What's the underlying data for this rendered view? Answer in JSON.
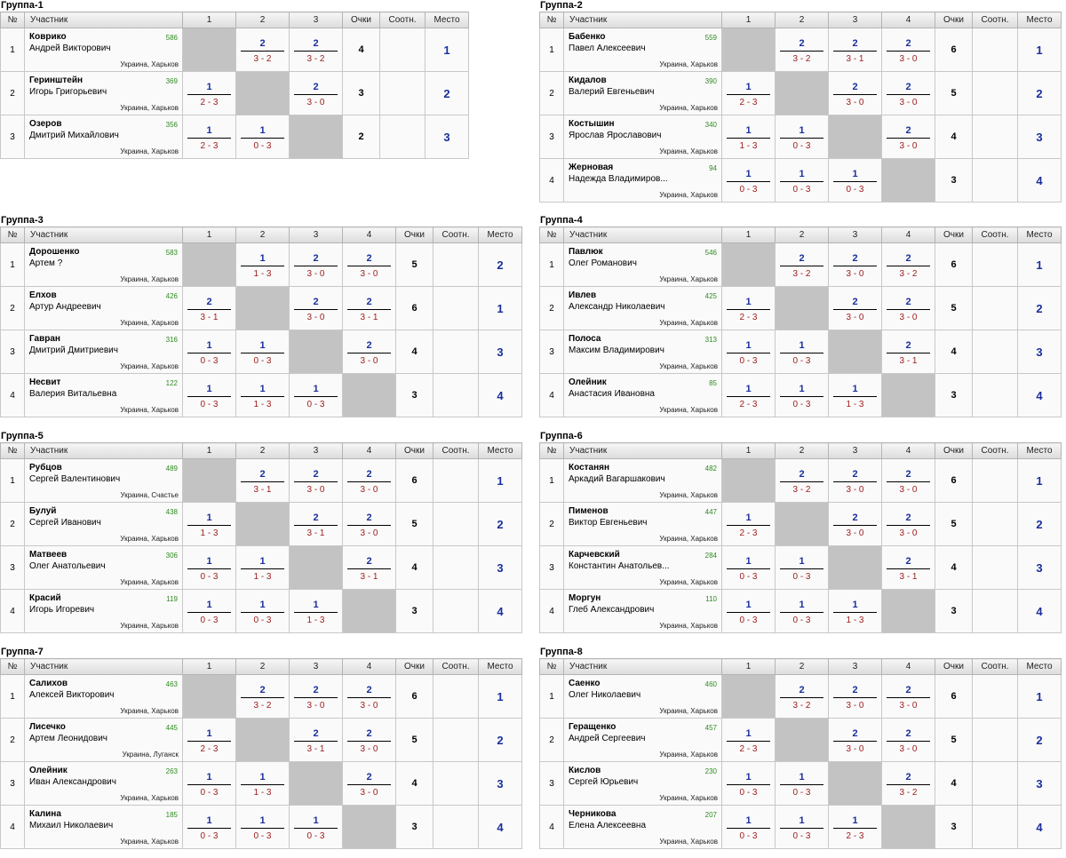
{
  "headers": {
    "no": "№",
    "participant": "Участник",
    "points": "Очки",
    "ratio": "Соотн.",
    "place": "Место"
  },
  "groups": [
    {
      "title": "Группа-1",
      "players": [
        {
          "n": "1",
          "last": "Коврико",
          "first": "Андрей Викторович",
          "rating": "586",
          "city": "Украина, Харьков",
          "results": [
            "",
            "2|3 - 2",
            "2|3 - 2"
          ],
          "points": "4",
          "ratio": "",
          "place": "1"
        },
        {
          "n": "2",
          "last": "Геринштейн",
          "first": "Игорь Григорьевич",
          "rating": "369",
          "city": "Украина, Харьков",
          "results": [
            "1|2 - 3",
            "",
            "2|3 - 0"
          ],
          "points": "3",
          "ratio": "",
          "place": "2"
        },
        {
          "n": "3",
          "last": "Озеров",
          "first": "Дмитрий Михайлович",
          "rating": "356",
          "city": "Украина, Харьков",
          "results": [
            "1|2 - 3",
            "1|0 - 3",
            ""
          ],
          "points": "2",
          "ratio": "",
          "place": "3"
        }
      ]
    },
    {
      "title": "Группа-2",
      "players": [
        {
          "n": "1",
          "last": "Бабенко",
          "first": "Павел Алексеевич",
          "rating": "559",
          "city": "Украина, Харьков",
          "results": [
            "",
            "2|3 - 2",
            "2|3 - 1",
            "2|3 - 0"
          ],
          "points": "6",
          "ratio": "",
          "place": "1"
        },
        {
          "n": "2",
          "last": "Кидалов",
          "first": "Валерий Евгеньевич",
          "rating": "390",
          "city": "Украина, Харьков",
          "results": [
            "1|2 - 3",
            "",
            "2|3 - 0",
            "2|3 - 0"
          ],
          "points": "5",
          "ratio": "",
          "place": "2"
        },
        {
          "n": "3",
          "last": "Костышин",
          "first": "Ярослав Ярославович",
          "rating": "340",
          "city": "Украина, Харьков",
          "results": [
            "1|1 - 3",
            "1|0 - 3",
            "",
            "2|3 - 0"
          ],
          "points": "4",
          "ratio": "",
          "place": "3"
        },
        {
          "n": "4",
          "last": "Жерновая",
          "first": "Надежда Владимиров...",
          "rating": "94",
          "city": "Украина, Харьков",
          "results": [
            "1|0 - 3",
            "1|0 - 3",
            "1|0 - 3",
            ""
          ],
          "points": "3",
          "ratio": "",
          "place": "4"
        }
      ]
    },
    {
      "title": "Группа-3",
      "players": [
        {
          "n": "1",
          "last": "Дорошенко",
          "first": "Артем ?",
          "rating": "583",
          "city": "Украина, Харьков",
          "results": [
            "",
            "1|1 - 3",
            "2|3 - 0",
            "2|3 - 0"
          ],
          "points": "5",
          "ratio": "",
          "place": "2"
        },
        {
          "n": "2",
          "last": "Елхов",
          "first": "Артур Андреевич",
          "rating": "426",
          "city": "Украина, Харьков",
          "results": [
            "2|3 - 1",
            "",
            "2|3 - 0",
            "2|3 - 1"
          ],
          "points": "6",
          "ratio": "",
          "place": "1"
        },
        {
          "n": "3",
          "last": "Гавран",
          "first": "Дмитрий Дмитриевич",
          "rating": "316",
          "city": "Украина, Харьков",
          "results": [
            "1|0 - 3",
            "1|0 - 3",
            "",
            "2|3 - 0"
          ],
          "points": "4",
          "ratio": "",
          "place": "3"
        },
        {
          "n": "4",
          "last": "Несвит",
          "first": "Валерия Витальевна",
          "rating": "122",
          "city": "Украина, Харьков",
          "results": [
            "1|0 - 3",
            "1|1 - 3",
            "1|0 - 3",
            ""
          ],
          "points": "3",
          "ratio": "",
          "place": "4"
        }
      ]
    },
    {
      "title": "Группа-4",
      "players": [
        {
          "n": "1",
          "last": "Павлюк",
          "first": "Олег Романович",
          "rating": "546",
          "city": "Украина, Харьков",
          "results": [
            "",
            "2|3 - 2",
            "2|3 - 0",
            "2|3 - 2"
          ],
          "points": "6",
          "ratio": "",
          "place": "1"
        },
        {
          "n": "2",
          "last": "Ивлев",
          "first": "Александр Николаевич",
          "rating": "425",
          "city": "Украина, Харьков",
          "results": [
            "1|2 - 3",
            "",
            "2|3 - 0",
            "2|3 - 0"
          ],
          "points": "5",
          "ratio": "",
          "place": "2"
        },
        {
          "n": "3",
          "last": "Полоса",
          "first": "Максим Владимирович",
          "rating": "313",
          "city": "Украина, Харьков",
          "results": [
            "1|0 - 3",
            "1|0 - 3",
            "",
            "2|3 - 1"
          ],
          "points": "4",
          "ratio": "",
          "place": "3"
        },
        {
          "n": "4",
          "last": "Олейник",
          "first": "Анастасия Ивановна",
          "rating": "85",
          "city": "Украина, Харьков",
          "results": [
            "1|2 - 3",
            "1|0 - 3",
            "1|1 - 3",
            ""
          ],
          "points": "3",
          "ratio": "",
          "place": "4"
        }
      ]
    },
    {
      "title": "Группа-5",
      "players": [
        {
          "n": "1",
          "last": "Рубцов",
          "first": "Сергей Валентинович",
          "rating": "489",
          "city": "Украина, Счастье",
          "results": [
            "",
            "2|3 - 1",
            "2|3 - 0",
            "2|3 - 0"
          ],
          "points": "6",
          "ratio": "",
          "place": "1"
        },
        {
          "n": "2",
          "last": "Булуй",
          "first": "Сергей Иванович",
          "rating": "438",
          "city": "Украина, Харьков",
          "results": [
            "1|1 - 3",
            "",
            "2|3 - 1",
            "2|3 - 0"
          ],
          "points": "5",
          "ratio": "",
          "place": "2"
        },
        {
          "n": "3",
          "last": "Матвеев",
          "first": "Олег Анатольевич",
          "rating": "306",
          "city": "Украина, Харьков",
          "results": [
            "1|0 - 3",
            "1|1 - 3",
            "",
            "2|3 - 1"
          ],
          "points": "4",
          "ratio": "",
          "place": "3"
        },
        {
          "n": "4",
          "last": "Красий",
          "first": "Игорь Игоревич",
          "rating": "119",
          "city": "Украина, Харьков",
          "results": [
            "1|0 - 3",
            "1|0 - 3",
            "1|1 - 3",
            ""
          ],
          "points": "3",
          "ratio": "",
          "place": "4"
        }
      ]
    },
    {
      "title": "Группа-6",
      "players": [
        {
          "n": "1",
          "last": "Костанян",
          "first": "Аркадий Вагаршакович",
          "rating": "482",
          "city": "Украина, Харьков",
          "results": [
            "",
            "2|3 - 2",
            "2|3 - 0",
            "2|3 - 0"
          ],
          "points": "6",
          "ratio": "",
          "place": "1"
        },
        {
          "n": "2",
          "last": "Пименов",
          "first": "Виктор Евгеньевич",
          "rating": "447",
          "city": "Украина, Харьков",
          "results": [
            "1|2 - 3",
            "",
            "2|3 - 0",
            "2|3 - 0"
          ],
          "points": "5",
          "ratio": "",
          "place": "2"
        },
        {
          "n": "3",
          "last": "Карчевский",
          "first": "Константин Анатольев...",
          "rating": "284",
          "city": "Украина, Харьков",
          "results": [
            "1|0 - 3",
            "1|0 - 3",
            "",
            "2|3 - 1"
          ],
          "points": "4",
          "ratio": "",
          "place": "3"
        },
        {
          "n": "4",
          "last": "Моргун",
          "first": "Глеб Александрович",
          "rating": "110",
          "city": "Украина, Харьков",
          "results": [
            "1|0 - 3",
            "1|0 - 3",
            "1|1 - 3",
            ""
          ],
          "points": "3",
          "ratio": "",
          "place": "4"
        }
      ]
    },
    {
      "title": "Группа-7",
      "players": [
        {
          "n": "1",
          "last": "Салихов",
          "first": "Алексей Викторович",
          "rating": "463",
          "city": "Украина, Харьков",
          "results": [
            "",
            "2|3 - 2",
            "2|3 - 0",
            "2|3 - 0"
          ],
          "points": "6",
          "ratio": "",
          "place": "1"
        },
        {
          "n": "2",
          "last": "Лисечко",
          "first": "Артем Леонидович",
          "rating": "445",
          "city": "Украина, Луганск",
          "results": [
            "1|2 - 3",
            "",
            "2|3 - 1",
            "2|3 - 0"
          ],
          "points": "5",
          "ratio": "",
          "place": "2"
        },
        {
          "n": "3",
          "last": "Олейник",
          "first": "Иван Александрович",
          "rating": "263",
          "city": "Украина, Харьков",
          "results": [
            "1|0 - 3",
            "1|1 - 3",
            "",
            "2|3 - 0"
          ],
          "points": "4",
          "ratio": "",
          "place": "3"
        },
        {
          "n": "4",
          "last": "Калина",
          "first": "Михаил Николаевич",
          "rating": "185",
          "city": "Украина, Харьков",
          "results": [
            "1|0 - 3",
            "1|0 - 3",
            "1|0 - 3",
            ""
          ],
          "points": "3",
          "ratio": "",
          "place": "4"
        }
      ]
    },
    {
      "title": "Группа-8",
      "players": [
        {
          "n": "1",
          "last": "Саенко",
          "first": "Олег Николаевич",
          "rating": "460",
          "city": "Украина, Харьков",
          "results": [
            "",
            "2|3 - 2",
            "2|3 - 0",
            "2|3 - 0"
          ],
          "points": "6",
          "ratio": "",
          "place": "1"
        },
        {
          "n": "2",
          "last": "Геращенко",
          "first": "Андрей Сергеевич",
          "rating": "457",
          "city": "Украина, Харьков",
          "results": [
            "1|2 - 3",
            "",
            "2|3 - 0",
            "2|3 - 0"
          ],
          "points": "5",
          "ratio": "",
          "place": "2"
        },
        {
          "n": "3",
          "last": "Кислов",
          "first": "Сергей Юрьевич",
          "rating": "230",
          "city": "Украина, Харьков",
          "results": [
            "1|0 - 3",
            "1|0 - 3",
            "",
            "2|3 - 2"
          ],
          "points": "4",
          "ratio": "",
          "place": "3"
        },
        {
          "n": "4",
          "last": "Черникова",
          "first": "Елена Алексеевна",
          "rating": "207",
          "city": "Украина, Харьков",
          "results": [
            "1|0 - 3",
            "1|0 - 3",
            "1|2 - 3",
            ""
          ],
          "points": "3",
          "ratio": "",
          "place": "4"
        }
      ]
    }
  ]
}
